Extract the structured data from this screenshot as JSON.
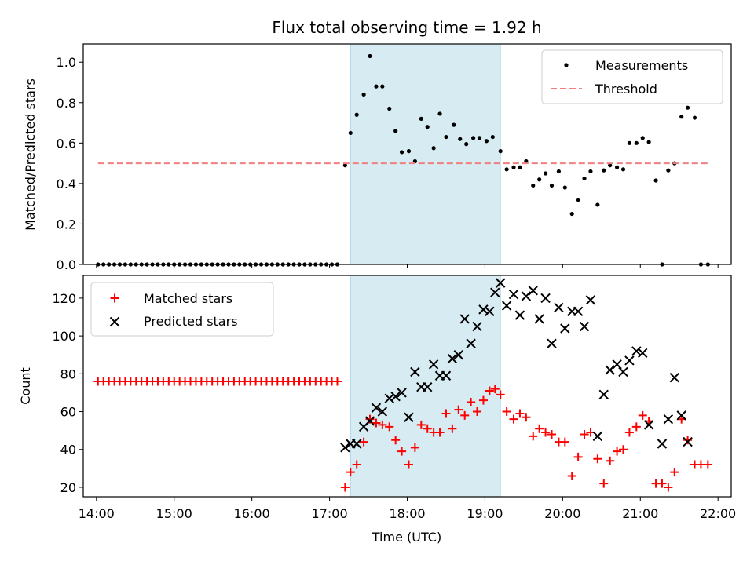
{
  "chart_data": [
    {
      "type": "scatter",
      "title": "Flux total observing time = 1.92 h",
      "xlabel": "",
      "ylabel": "Matched/Predicted stars",
      "xlim": [
        13.83,
        22.17
      ],
      "ylim": [
        0,
        1.09
      ],
      "yticks": [
        "0.0",
        "0.2",
        "0.4",
        "0.6",
        "0.8",
        "1.0"
      ],
      "legend_position": "top-right",
      "shaded_span": [
        17.27,
        19.2
      ],
      "series": [
        {
          "name": "Measurements",
          "color": "#000000",
          "marker": "dot",
          "points": [
            [
              14.02,
              0
            ],
            [
              14.09,
              0
            ],
            [
              14.16,
              0
            ],
            [
              14.23,
              0
            ],
            [
              14.3,
              0
            ],
            [
              14.37,
              0
            ],
            [
              14.44,
              0
            ],
            [
              14.51,
              0
            ],
            [
              14.58,
              0
            ],
            [
              14.65,
              0
            ],
            [
              14.72,
              0
            ],
            [
              14.79,
              0
            ],
            [
              14.86,
              0
            ],
            [
              14.93,
              0
            ],
            [
              15.0,
              0
            ],
            [
              15.07,
              0
            ],
            [
              15.14,
              0
            ],
            [
              15.21,
              0
            ],
            [
              15.28,
              0
            ],
            [
              15.35,
              0
            ],
            [
              15.42,
              0
            ],
            [
              15.49,
              0
            ],
            [
              15.56,
              0
            ],
            [
              15.63,
              0
            ],
            [
              15.7,
              0
            ],
            [
              15.77,
              0
            ],
            [
              15.84,
              0
            ],
            [
              15.91,
              0
            ],
            [
              15.98,
              0
            ],
            [
              16.05,
              0
            ],
            [
              16.12,
              0
            ],
            [
              16.19,
              0
            ],
            [
              16.26,
              0
            ],
            [
              16.33,
              0
            ],
            [
              16.4,
              0
            ],
            [
              16.47,
              0
            ],
            [
              16.54,
              0
            ],
            [
              16.61,
              0
            ],
            [
              16.68,
              0
            ],
            [
              16.75,
              0
            ],
            [
              16.82,
              0
            ],
            [
              16.89,
              0
            ],
            [
              16.96,
              0
            ],
            [
              17.03,
              0
            ],
            [
              17.1,
              0
            ],
            [
              17.2,
              0.49
            ],
            [
              17.27,
              0.65
            ],
            [
              17.35,
              0.74
            ],
            [
              17.44,
              0.84
            ],
            [
              17.52,
              1.03
            ],
            [
              17.6,
              0.88
            ],
            [
              17.68,
              0.88
            ],
            [
              17.77,
              0.77
            ],
            [
              17.85,
              0.66
            ],
            [
              17.93,
              0.555
            ],
            [
              18.02,
              0.56
            ],
            [
              18.1,
              0.51
            ],
            [
              18.18,
              0.72
            ],
            [
              18.26,
              0.68
            ],
            [
              18.34,
              0.575
            ],
            [
              18.42,
              0.745
            ],
            [
              18.5,
              0.63
            ],
            [
              18.6,
              0.69
            ],
            [
              18.68,
              0.62
            ],
            [
              18.76,
              0.595
            ],
            [
              18.85,
              0.625
            ],
            [
              18.93,
              0.625
            ],
            [
              19.02,
              0.61
            ],
            [
              19.1,
              0.63
            ],
            [
              19.2,
              0.56
            ],
            [
              19.28,
              0.47
            ],
            [
              19.37,
              0.48
            ],
            [
              19.45,
              0.48
            ],
            [
              19.53,
              0.51
            ],
            [
              19.62,
              0.39
            ],
            [
              19.7,
              0.42
            ],
            [
              19.78,
              0.45
            ],
            [
              19.86,
              0.39
            ],
            [
              19.95,
              0.46
            ],
            [
              20.03,
              0.38
            ],
            [
              20.12,
              0.25
            ],
            [
              20.2,
              0.32
            ],
            [
              20.28,
              0.425
            ],
            [
              20.36,
              0.46
            ],
            [
              20.45,
              0.295
            ],
            [
              20.53,
              0.465
            ],
            [
              20.61,
              0.49
            ],
            [
              20.7,
              0.48
            ],
            [
              20.78,
              0.47
            ],
            [
              20.86,
              0.6
            ],
            [
              20.95,
              0.6
            ],
            [
              21.03,
              0.625
            ],
            [
              21.11,
              0.605
            ],
            [
              21.2,
              0.415
            ],
            [
              21.28,
              0
            ],
            [
              21.36,
              0.465
            ],
            [
              21.44,
              0.5
            ],
            [
              21.53,
              0.73
            ],
            [
              21.61,
              0.775
            ],
            [
              21.7,
              0.725
            ],
            [
              21.78,
              0
            ],
            [
              21.87,
              0
            ]
          ]
        },
        {
          "name": "Threshold",
          "color": "#f08080",
          "style": "dashed",
          "x": [
            14.02,
            21.9
          ],
          "y": [
            0.5,
            0.5
          ]
        }
      ]
    },
    {
      "type": "scatter",
      "title": "",
      "xlabel": "Time (UTC)",
      "ylabel": "Count",
      "xlim": [
        13.83,
        22.17
      ],
      "ylim": [
        15,
        132
      ],
      "yticks": [
        "20",
        "40",
        "60",
        "80",
        "100",
        "120"
      ],
      "xticks": [
        "14:00",
        "15:00",
        "16:00",
        "17:00",
        "18:00",
        "19:00",
        "20:00",
        "21:00",
        "22:00"
      ],
      "legend_position": "top-left",
      "shaded_span": [
        17.27,
        19.2
      ],
      "series": [
        {
          "name": "Matched stars",
          "color": "#ff0000",
          "marker": "plus",
          "points": [
            [
              14.02,
              76
            ],
            [
              14.09,
              76
            ],
            [
              14.16,
              76
            ],
            [
              14.23,
              76
            ],
            [
              14.3,
              76
            ],
            [
              14.37,
              76
            ],
            [
              14.44,
              76
            ],
            [
              14.51,
              76
            ],
            [
              14.58,
              76
            ],
            [
              14.65,
              76
            ],
            [
              14.72,
              76
            ],
            [
              14.79,
              76
            ],
            [
              14.86,
              76
            ],
            [
              14.93,
              76
            ],
            [
              15.0,
              76
            ],
            [
              15.07,
              76
            ],
            [
              15.14,
              76
            ],
            [
              15.21,
              76
            ],
            [
              15.28,
              76
            ],
            [
              15.35,
              76
            ],
            [
              15.42,
              76
            ],
            [
              15.49,
              76
            ],
            [
              15.56,
              76
            ],
            [
              15.63,
              76
            ],
            [
              15.7,
              76
            ],
            [
              15.77,
              76
            ],
            [
              15.84,
              76
            ],
            [
              15.91,
              76
            ],
            [
              15.98,
              76
            ],
            [
              16.05,
              76
            ],
            [
              16.12,
              76
            ],
            [
              16.19,
              76
            ],
            [
              16.26,
              76
            ],
            [
              16.33,
              76
            ],
            [
              16.4,
              76
            ],
            [
              16.47,
              76
            ],
            [
              16.54,
              76
            ],
            [
              16.61,
              76
            ],
            [
              16.68,
              76
            ],
            [
              16.75,
              76
            ],
            [
              16.82,
              76
            ],
            [
              16.89,
              76
            ],
            [
              16.96,
              76
            ],
            [
              17.03,
              76
            ],
            [
              17.1,
              76
            ],
            [
              17.2,
              20
            ],
            [
              17.27,
              28
            ],
            [
              17.35,
              32
            ],
            [
              17.44,
              44
            ],
            [
              17.52,
              56
            ],
            [
              17.6,
              54
            ],
            [
              17.68,
              53
            ],
            [
              17.77,
              52
            ],
            [
              17.85,
              45
            ],
            [
              17.93,
              39
            ],
            [
              18.02,
              32
            ],
            [
              18.1,
              41
            ],
            [
              18.18,
              53
            ],
            [
              18.26,
              51
            ],
            [
              18.34,
              49
            ],
            [
              18.42,
              49
            ],
            [
              18.5,
              59
            ],
            [
              18.58,
              51
            ],
            [
              18.66,
              61
            ],
            [
              18.74,
              58
            ],
            [
              18.82,
              65
            ],
            [
              18.9,
              60
            ],
            [
              18.98,
              66
            ],
            [
              19.06,
              71
            ],
            [
              19.13,
              72
            ],
            [
              19.2,
              69
            ],
            [
              19.28,
              60
            ],
            [
              19.37,
              56
            ],
            [
              19.45,
              59
            ],
            [
              19.53,
              57
            ],
            [
              19.62,
              47
            ],
            [
              19.7,
              51
            ],
            [
              19.78,
              49
            ],
            [
              19.86,
              48
            ],
            [
              19.95,
              44
            ],
            [
              20.03,
              44
            ],
            [
              20.12,
              26
            ],
            [
              20.2,
              36
            ],
            [
              20.28,
              48
            ],
            [
              20.36,
              49
            ],
            [
              20.45,
              35
            ],
            [
              20.53,
              22
            ],
            [
              20.61,
              34
            ],
            [
              20.7,
              39
            ],
            [
              20.78,
              40
            ],
            [
              20.86,
              49
            ],
            [
              20.95,
              52
            ],
            [
              21.03,
              58
            ],
            [
              21.11,
              55
            ],
            [
              21.2,
              22
            ],
            [
              21.28,
              22
            ],
            [
              21.36,
              20
            ],
            [
              21.44,
              28
            ],
            [
              21.53,
              56
            ],
            [
              21.61,
              45
            ],
            [
              21.7,
              32
            ],
            [
              21.78,
              32
            ],
            [
              21.87,
              32
            ]
          ]
        },
        {
          "name": "Predicted stars",
          "color": "#000000",
          "marker": "x",
          "points": [
            [
              17.2,
              41
            ],
            [
              17.27,
              43
            ],
            [
              17.35,
              43
            ],
            [
              17.44,
              52
            ],
            [
              17.52,
              55
            ],
            [
              17.6,
              62
            ],
            [
              17.68,
              60
            ],
            [
              17.77,
              67
            ],
            [
              17.85,
              68
            ],
            [
              17.93,
              70
            ],
            [
              18.02,
              57
            ],
            [
              18.1,
              81
            ],
            [
              18.18,
              73
            ],
            [
              18.26,
              73
            ],
            [
              18.34,
              85
            ],
            [
              18.42,
              79
            ],
            [
              18.5,
              79
            ],
            [
              18.58,
              88
            ],
            [
              18.66,
              90
            ],
            [
              18.74,
              109
            ],
            [
              18.82,
              96
            ],
            [
              18.9,
              105
            ],
            [
              18.98,
              114
            ],
            [
              19.06,
              113
            ],
            [
              19.13,
              123
            ],
            [
              19.2,
              128
            ],
            [
              19.28,
              116
            ],
            [
              19.37,
              122
            ],
            [
              19.45,
              111
            ],
            [
              19.53,
              121
            ],
            [
              19.62,
              124
            ],
            [
              19.7,
              109
            ],
            [
              19.78,
              120
            ],
            [
              19.86,
              96
            ],
            [
              19.95,
              115
            ],
            [
              20.03,
              104
            ],
            [
              20.12,
              113
            ],
            [
              20.2,
              113
            ],
            [
              20.28,
              105
            ],
            [
              20.36,
              119
            ],
            [
              20.45,
              47
            ],
            [
              20.53,
              69
            ],
            [
              20.61,
              82
            ],
            [
              20.7,
              85
            ],
            [
              20.78,
              81
            ],
            [
              20.86,
              87
            ],
            [
              20.95,
              92
            ],
            [
              21.03,
              91
            ],
            [
              21.11,
              53
            ],
            [
              21.28,
              43
            ],
            [
              21.36,
              56
            ],
            [
              21.44,
              78
            ],
            [
              21.53,
              58
            ],
            [
              21.61,
              44
            ]
          ]
        }
      ]
    }
  ]
}
